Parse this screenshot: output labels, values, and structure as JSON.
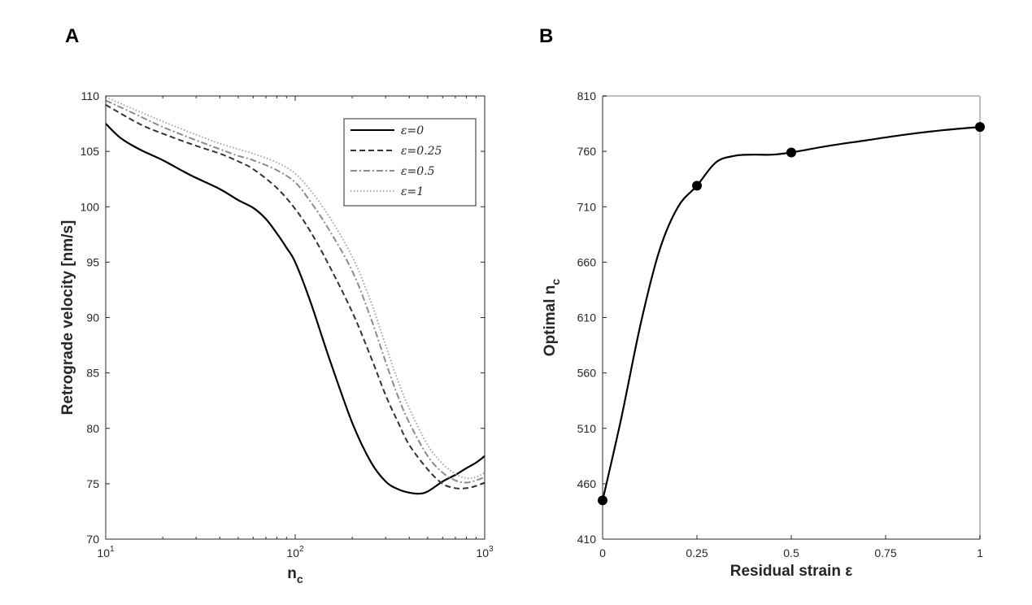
{
  "chart_data": [
    {
      "panel": "A",
      "type": "line",
      "xscale": "log",
      "xlim": [
        10,
        1000
      ],
      "ylim": [
        70,
        110
      ],
      "xticks": [
        10,
        100,
        1000
      ],
      "xtick_labels": [
        {
          "base": "10",
          "exp": "1"
        },
        {
          "base": "10",
          "exp": "2"
        },
        {
          "base": "10",
          "exp": "3"
        }
      ],
      "yticks": [
        70,
        75,
        80,
        85,
        90,
        95,
        100,
        105,
        110
      ],
      "xlabel": {
        "main": "n",
        "sub": "c"
      },
      "ylabel": "Retrograde velocity [nm/s]",
      "legend_position": "top-right",
      "series": [
        {
          "name": "ε=0",
          "color": "#000000",
          "dash": "solid",
          "x": [
            10,
            12,
            15,
            20,
            25,
            30,
            40,
            50,
            60,
            70,
            80,
            90,
            100,
            120,
            150,
            200,
            250,
            300,
            350,
            400,
            450,
            500,
            600,
            700,
            800,
            900,
            1000
          ],
          "y": [
            107.5,
            106.2,
            105.2,
            104.2,
            103.3,
            102.6,
            101.6,
            100.6,
            99.9,
            98.9,
            97.6,
            96.3,
            95.0,
            91.5,
            86.5,
            80.5,
            77.0,
            75.2,
            74.5,
            74.2,
            74.1,
            74.3,
            75.2,
            75.8,
            76.4,
            76.9,
            77.5
          ]
        },
        {
          "name": "ε=0.25",
          "color": "#333333",
          "dash": "dashed",
          "x": [
            10,
            15,
            20,
            30,
            40,
            50,
            60,
            80,
            100,
            120,
            150,
            200,
            250,
            300,
            350,
            400,
            500,
            600,
            700,
            800,
            900,
            1000
          ],
          "y": [
            109.2,
            107.5,
            106.6,
            105.5,
            104.8,
            104.1,
            103.4,
            101.7,
            99.8,
            97.8,
            94.8,
            90.5,
            86.5,
            83.0,
            80.5,
            78.5,
            76.3,
            75.0,
            74.6,
            74.6,
            74.8,
            75.1
          ]
        },
        {
          "name": "ε=0.5",
          "color": "#8c8c8c",
          "dash": "dashdot",
          "x": [
            10,
            15,
            20,
            30,
            40,
            50,
            60,
            80,
            100,
            120,
            150,
            200,
            250,
            300,
            350,
            400,
            500,
            600,
            700,
            800,
            900,
            1000
          ],
          "y": [
            109.6,
            108.2,
            107.2,
            106.0,
            105.2,
            104.6,
            104.2,
            103.3,
            102.2,
            100.5,
            98.0,
            94.2,
            90.0,
            86.0,
            82.8,
            80.5,
            77.5,
            76.0,
            75.3,
            75.1,
            75.3,
            75.6
          ]
        },
        {
          "name": "ε=1",
          "color": "#a6a6a6",
          "dash": "dotted",
          "x": [
            10,
            15,
            20,
            30,
            40,
            50,
            60,
            80,
            100,
            120,
            150,
            200,
            250,
            300,
            350,
            400,
            500,
            600,
            700,
            800,
            900,
            1000
          ],
          "y": [
            109.9,
            108.6,
            107.7,
            106.5,
            105.7,
            105.2,
            104.8,
            104.0,
            103.0,
            101.5,
            99.2,
            95.5,
            91.5,
            87.5,
            84.2,
            81.8,
            78.5,
            76.8,
            75.9,
            75.5,
            75.6,
            76.0
          ]
        }
      ]
    },
    {
      "panel": "B",
      "type": "line",
      "xlim": [
        0,
        1
      ],
      "ylim": [
        410,
        810
      ],
      "xticks": [
        0,
        0.25,
        0.5,
        0.75,
        1
      ],
      "xtick_labels": [
        "0",
        "0.25",
        "0.5",
        "0.75",
        "1"
      ],
      "yticks": [
        410,
        460,
        510,
        560,
        610,
        660,
        710,
        760,
        810
      ],
      "xlabel": "Residual strain ε",
      "ylabel": {
        "main": "Optimal n",
        "sub": "c"
      },
      "markers": {
        "x": [
          0,
          0.25,
          0.5,
          1
        ],
        "y": [
          445,
          729,
          759,
          782
        ]
      },
      "curve": {
        "x": [
          0,
          0.05,
          0.1,
          0.15,
          0.2,
          0.25,
          0.3,
          0.35,
          0.4,
          0.45,
          0.5,
          0.6,
          0.7,
          0.8,
          0.9,
          1.0
        ],
        "y": [
          445,
          520,
          603,
          670,
          710,
          729,
          750,
          756,
          757,
          757,
          759,
          765,
          770,
          775,
          779,
          782
        ]
      }
    }
  ],
  "panels": {
    "A": "A",
    "B": "B"
  },
  "colors": {
    "axis": "#262626",
    "frame_b": "#bfbfbf",
    "marker": "#000000"
  }
}
